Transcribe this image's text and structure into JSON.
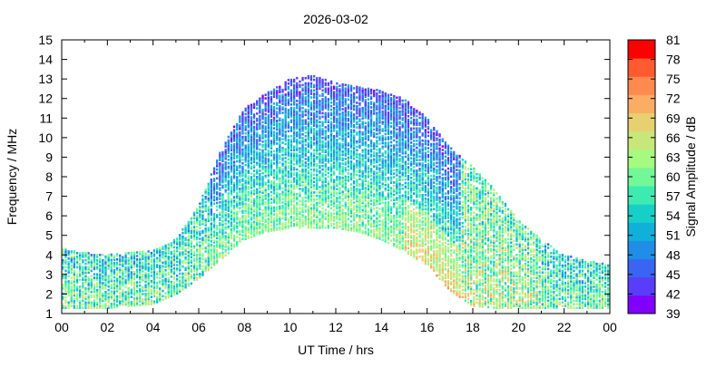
{
  "chart_data": {
    "type": "heatmap",
    "title": "2026-03-02",
    "xlabel": "UT Time / hrs",
    "ylabel": "Frequency / MHz",
    "xlim": [
      0,
      24
    ],
    "ylim": [
      1,
      15
    ],
    "x_tick_labels": [
      "00",
      "02",
      "04",
      "06",
      "08",
      "10",
      "12",
      "14",
      "16",
      "18",
      "20",
      "22",
      "00"
    ],
    "y_tick_labels": [
      "1",
      "2",
      "3",
      "4",
      "5",
      "6",
      "7",
      "8",
      "9",
      "10",
      "11",
      "12",
      "13",
      "14",
      "15"
    ],
    "colorbar": {
      "label": "Signal Amplitude / dB",
      "range": [
        39,
        81
      ],
      "tick_labels": [
        "39",
        "42",
        "45",
        "48",
        "51",
        "54",
        "57",
        "60",
        "63",
        "66",
        "69",
        "72",
        "75",
        "78",
        "81"
      ],
      "colors": [
        "#8000ff",
        "#5a3cfb",
        "#3a64f2",
        "#208ee6",
        "#10b0da",
        "#16d0c8",
        "#3deab2",
        "#72f799",
        "#a4fb80",
        "#c8e77a",
        "#e6d070",
        "#fbad63",
        "#ff8a50",
        "#ff5a30",
        "#ff0000"
      ]
    },
    "series_profile": {
      "description_hours": [
        0,
        2,
        4,
        5,
        6,
        7,
        8,
        9,
        10,
        11,
        12,
        13,
        14,
        15,
        16,
        17,
        18,
        19,
        20,
        21,
        22,
        23,
        24
      ],
      "max_frequency_mhz": [
        4.3,
        4.0,
        4.2,
        4.8,
        6.5,
        9.5,
        11.5,
        12.3,
        13.0,
        13.2,
        12.8,
        12.6,
        12.4,
        12.0,
        11.0,
        9.5,
        8.5,
        7.3,
        5.8,
        4.8,
        4.0,
        3.7,
        3.5
      ],
      "min_frequency_mhz": [
        1.3,
        1.3,
        1.5,
        2.0,
        2.8,
        3.8,
        4.8,
        5.2,
        5.4,
        5.4,
        5.4,
        5.2,
        4.8,
        4.2,
        3.5,
        2.2,
        1.4,
        1.3,
        1.3,
        1.3,
        1.3,
        1.3,
        1.3
      ]
    }
  }
}
